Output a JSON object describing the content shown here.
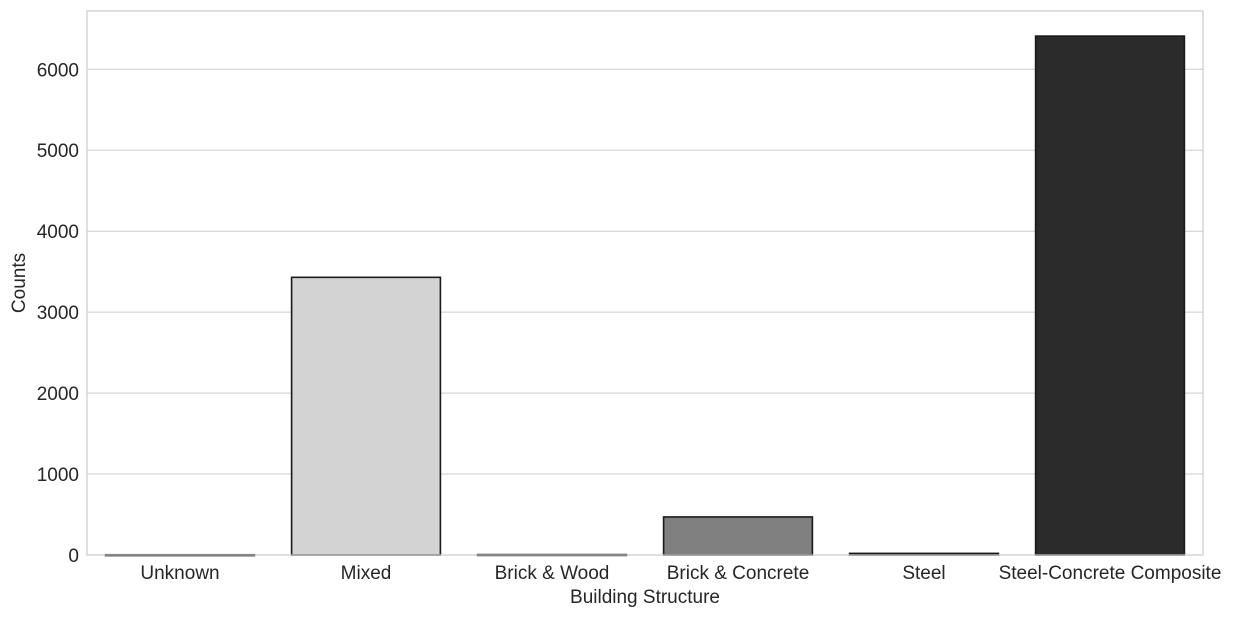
{
  "chart_data": {
    "type": "bar",
    "title": "",
    "xlabel": "Building Structure",
    "ylabel": "Counts",
    "categories": [
      "Unknown",
      "Mixed",
      "Brick & Wood",
      "Brick & Concrete",
      "Steel",
      "Steel-Concrete Composite"
    ],
    "values": [
      3,
      3430,
      5,
      470,
      20,
      6410
    ],
    "colors": [
      "#f2f2f2",
      "#d3d3d3",
      "#b0b0b0",
      "#808080",
      "#505050",
      "#2b2b2b"
    ],
    "ylim": [
      0,
      6720
    ],
    "yticks": [
      0,
      1000,
      2000,
      3000,
      4000,
      5000,
      6000
    ],
    "grid": "horizontal",
    "legend": "none"
  }
}
